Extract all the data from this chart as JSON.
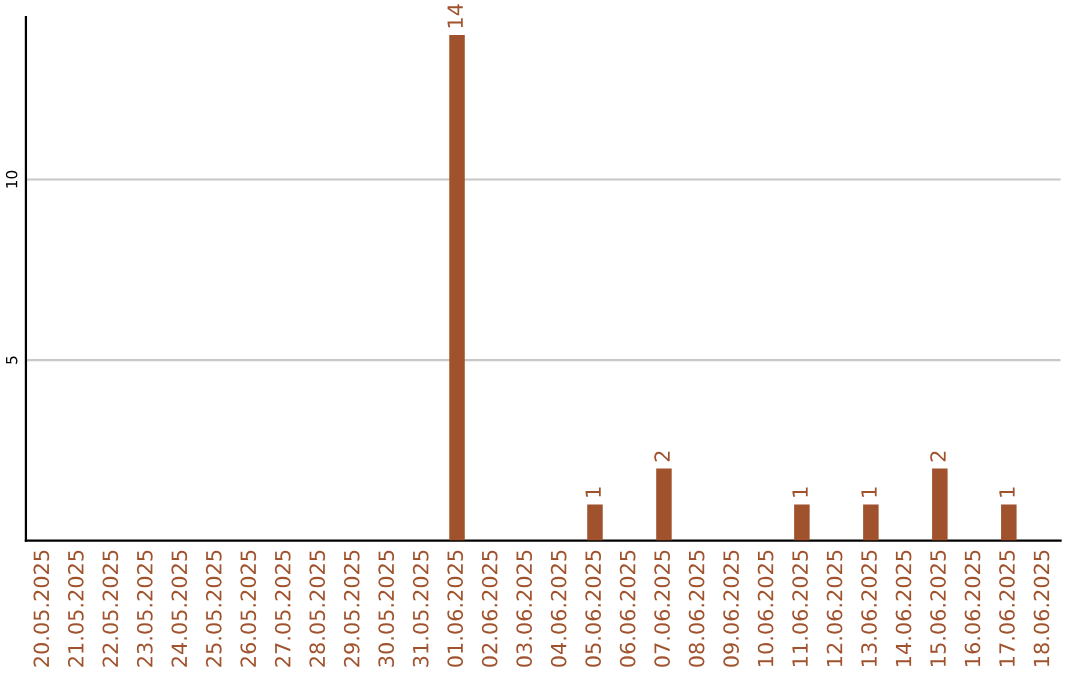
{
  "chart_data": {
    "type": "bar",
    "categories": [
      "20.05.2025",
      "21.05.2025",
      "22.05.2025",
      "23.05.2025",
      "24.05.2025",
      "25.05.2025",
      "26.05.2025",
      "27.05.2025",
      "28.05.2025",
      "29.05.2025",
      "30.05.2025",
      "31.05.2025",
      "01.06.2025",
      "02.06.2025",
      "03.06.2025",
      "04.06.2025",
      "05.06.2025",
      "06.06.2025",
      "07.06.2025",
      "08.06.2025",
      "09.06.2025",
      "10.06.2025",
      "11.06.2025",
      "12.06.2025",
      "13.06.2025",
      "14.06.2025",
      "15.06.2025",
      "16.06.2025",
      "17.06.2025",
      "18.06.2025"
    ],
    "values": [
      0,
      0,
      0,
      0,
      0,
      0,
      0,
      0,
      0,
      0,
      0,
      0,
      14,
      0,
      0,
      0,
      1,
      0,
      2,
      0,
      0,
      0,
      1,
      0,
      1,
      0,
      2,
      0,
      1,
      0
    ],
    "value_labels": [
      null,
      null,
      null,
      null,
      null,
      null,
      null,
      null,
      null,
      null,
      null,
      null,
      "14",
      null,
      null,
      null,
      "1",
      null,
      "2",
      null,
      null,
      null,
      "1",
      null,
      "1",
      null,
      "2",
      null,
      "1",
      null
    ],
    "color": "#a0522d",
    "ylim": [
      0,
      14.5
    ],
    "yticks": [
      5,
      10
    ],
    "grid": "y",
    "legend": false
  }
}
